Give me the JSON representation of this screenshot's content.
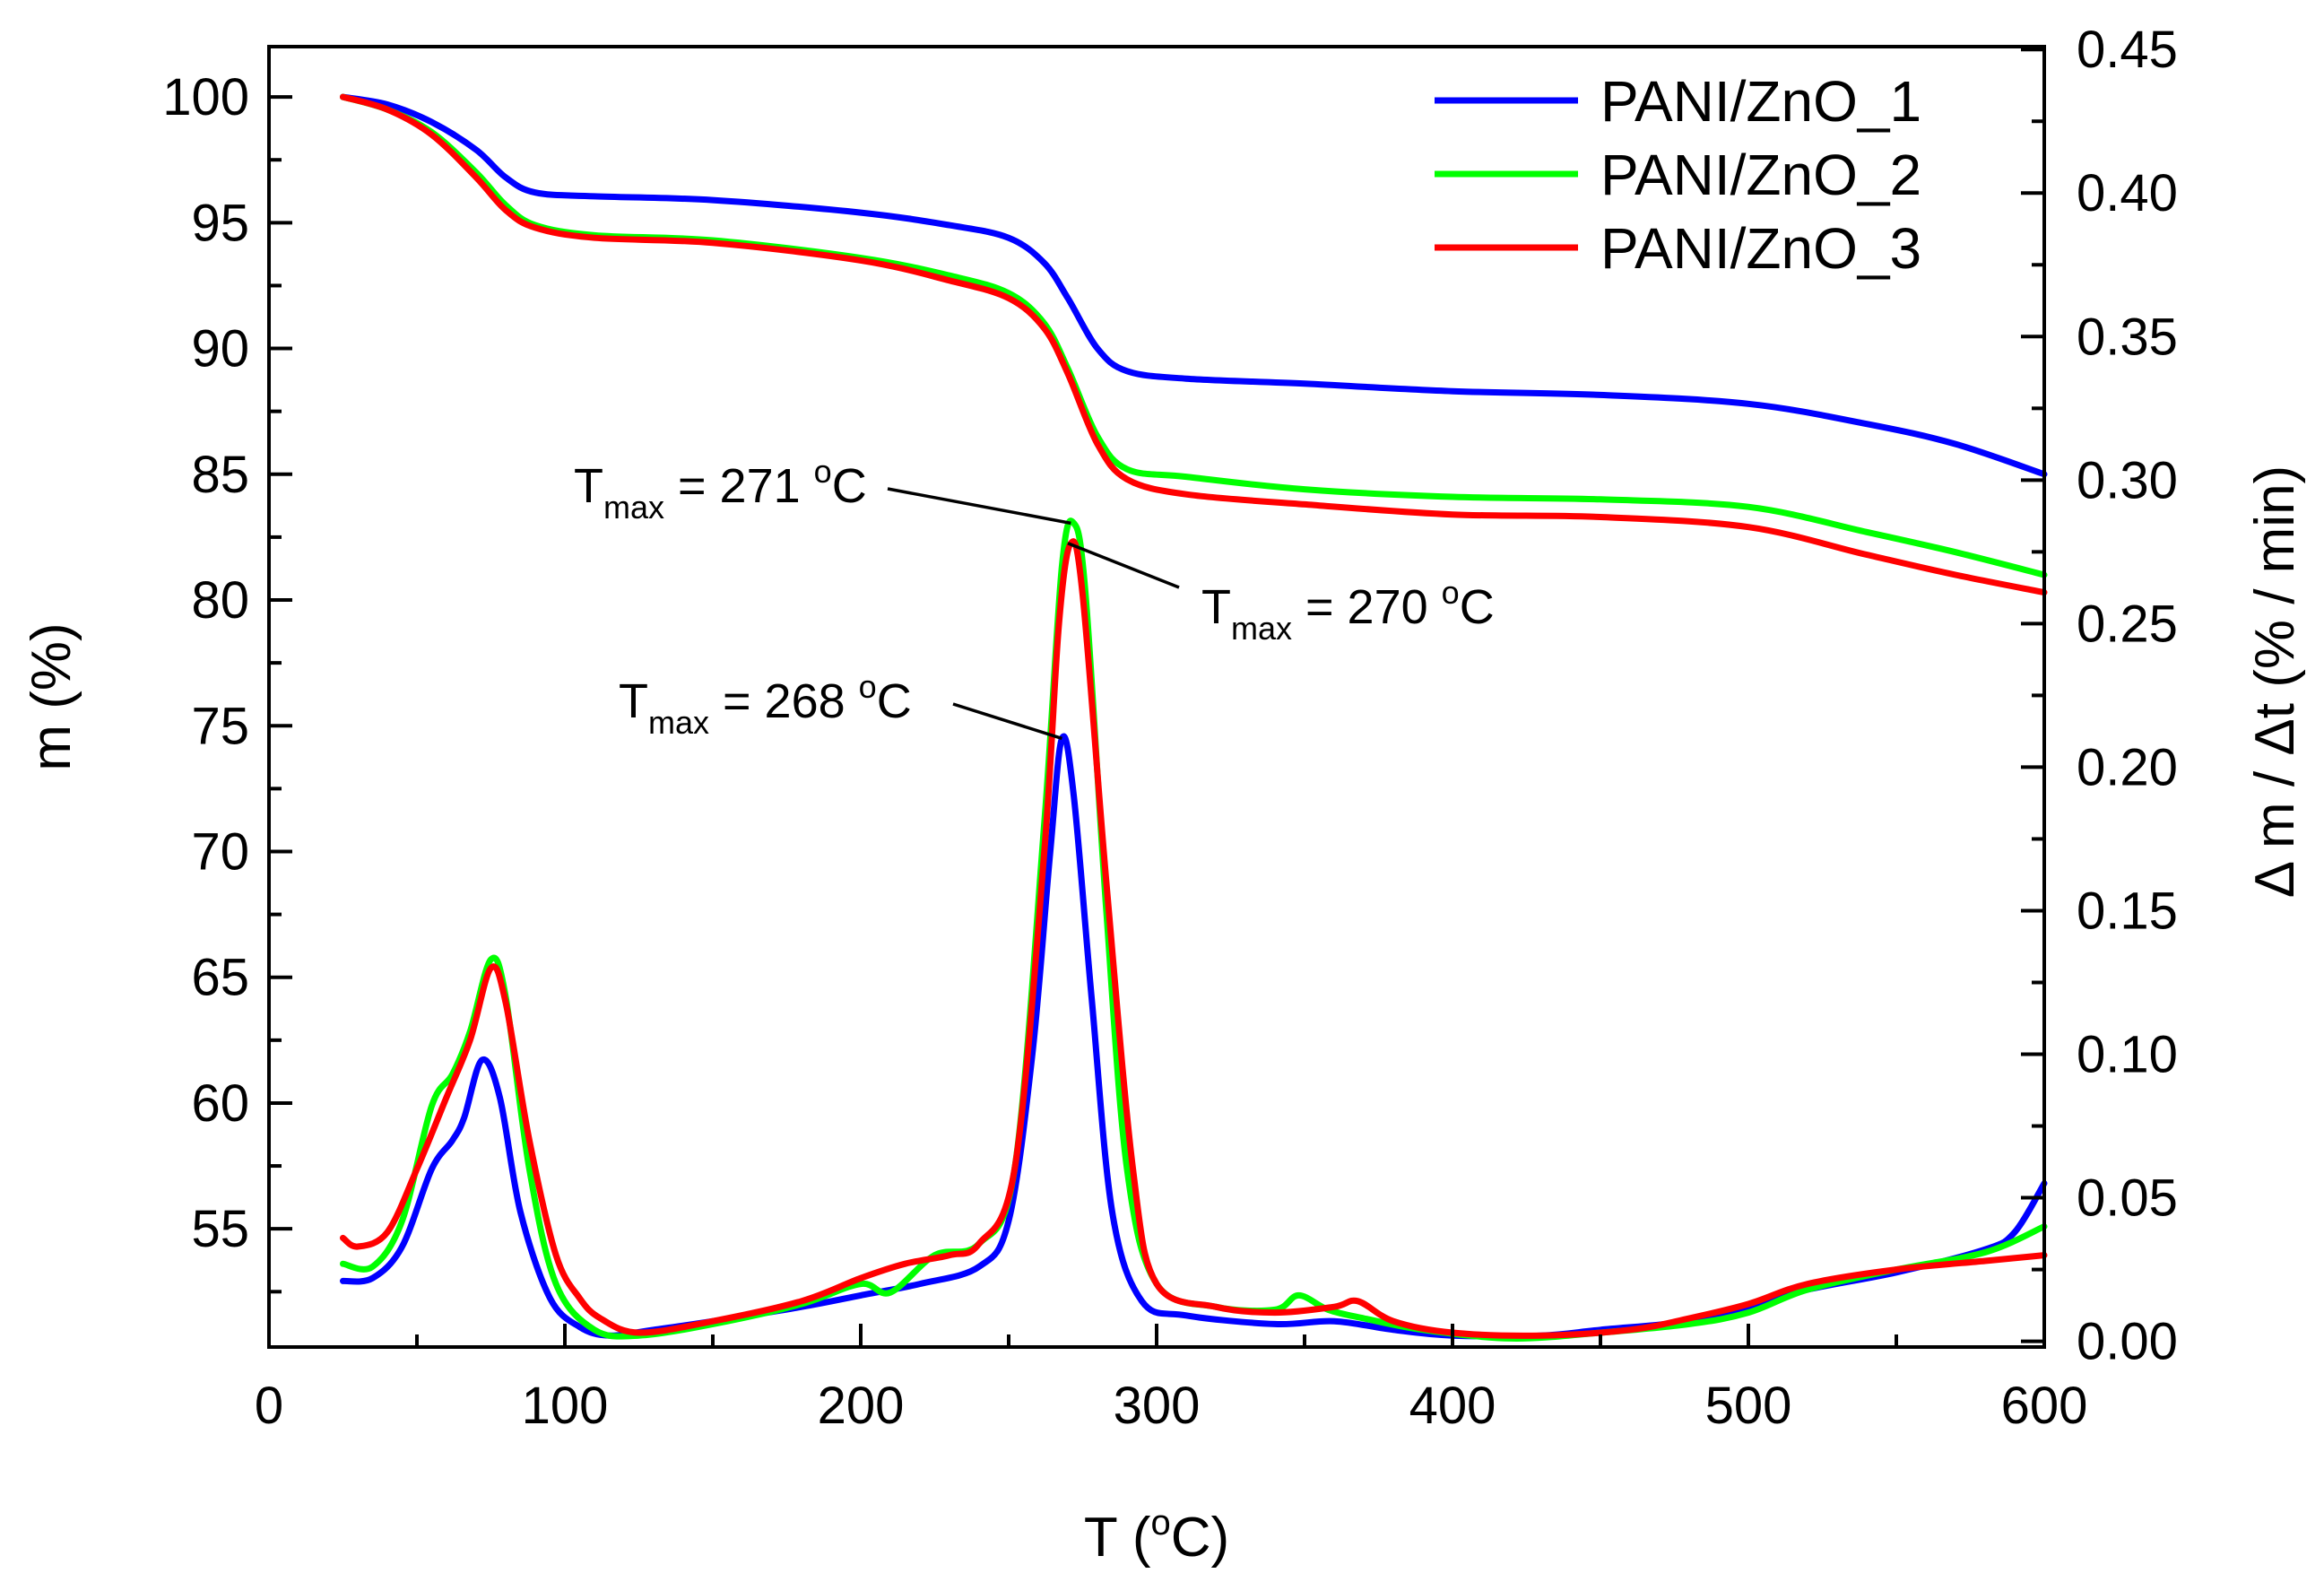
{
  "chart_data": {
    "type": "line",
    "title": "",
    "xlabel": "T (°C)",
    "xlabel_parts": {
      "prefix": "T (",
      "sup": "o",
      "suffix": "C)"
    },
    "ylabel_left": "m (%)",
    "ylabel_right": "Δ m / Δt (% / min)",
    "xlim": [
      0,
      600
    ],
    "ylim_left": [
      50.3,
      102
    ],
    "ylim_right": [
      -0.002,
      0.451
    ],
    "x_ticks": [
      "0",
      "100",
      "200",
      "300",
      "400",
      "500",
      "600"
    ],
    "y_left_ticks": [
      "55",
      "60",
      "65",
      "70",
      "75",
      "80",
      "85",
      "90",
      "95",
      "100"
    ],
    "y_right_ticks": [
      "0.00",
      "0.05",
      "0.10",
      "0.15",
      "0.20",
      "0.25",
      "0.30",
      "0.35",
      "0.40",
      "0.45"
    ],
    "grid": false,
    "legend_position": "top-right",
    "colors": {
      "PANI/ZnO_1": "#0000ff",
      "PANI/ZnO_2": "#00ff00",
      "PANI/ZnO_3": "#ff0000"
    },
    "series": [
      {
        "name": "PANI/ZnO_1",
        "axis": "left",
        "kind": "TG",
        "points": [
          [
            25,
            100
          ],
          [
            40,
            99.7
          ],
          [
            55,
            99
          ],
          [
            70,
            97.9
          ],
          [
            80,
            96.8
          ],
          [
            90,
            96.2
          ],
          [
            110,
            96.05
          ],
          [
            150,
            95.9
          ],
          [
            200,
            95.4
          ],
          [
            230,
            94.9
          ],
          [
            250,
            94.4
          ],
          [
            262,
            93.4
          ],
          [
            270,
            92
          ],
          [
            280,
            90
          ],
          [
            290,
            89.1
          ],
          [
            310,
            88.8
          ],
          [
            350,
            88.6
          ],
          [
            400,
            88.3
          ],
          [
            450,
            88.15
          ],
          [
            500,
            87.8
          ],
          [
            540,
            87
          ],
          [
            570,
            86.2
          ],
          [
            600,
            85
          ]
        ]
      },
      {
        "name": "PANI/ZnO_2",
        "axis": "left",
        "kind": "TG",
        "points": [
          [
            25,
            100
          ],
          [
            40,
            99.5
          ],
          [
            55,
            98.6
          ],
          [
            70,
            97
          ],
          [
            80,
            95.7
          ],
          [
            90,
            94.9
          ],
          [
            110,
            94.5
          ],
          [
            150,
            94.3
          ],
          [
            200,
            93.6
          ],
          [
            230,
            92.9
          ],
          [
            250,
            92.2
          ],
          [
            262,
            91
          ],
          [
            270,
            89.2
          ],
          [
            280,
            86.5
          ],
          [
            290,
            85.2
          ],
          [
            310,
            84.9
          ],
          [
            350,
            84.4
          ],
          [
            400,
            84.1
          ],
          [
            450,
            84
          ],
          [
            500,
            83.7
          ],
          [
            540,
            82.7
          ],
          [
            570,
            81.9
          ],
          [
            600,
            81
          ]
        ]
      },
      {
        "name": "PANI/ZnO_3",
        "axis": "left",
        "kind": "TG",
        "points": [
          [
            25,
            100
          ],
          [
            40,
            99.5
          ],
          [
            55,
            98.5
          ],
          [
            70,
            96.8
          ],
          [
            80,
            95.5
          ],
          [
            90,
            94.8
          ],
          [
            110,
            94.4
          ],
          [
            150,
            94.2
          ],
          [
            200,
            93.5
          ],
          [
            230,
            92.7
          ],
          [
            250,
            92
          ],
          [
            262,
            90.8
          ],
          [
            270,
            89
          ],
          [
            280,
            86.2
          ],
          [
            290,
            84.8
          ],
          [
            310,
            84.2
          ],
          [
            350,
            83.8
          ],
          [
            400,
            83.4
          ],
          [
            450,
            83.3
          ],
          [
            500,
            82.9
          ],
          [
            540,
            81.8
          ],
          [
            570,
            81
          ],
          [
            600,
            80.3
          ]
        ]
      },
      {
        "name": "PANI/ZnO_1",
        "axis": "right",
        "kind": "DTG",
        "points": [
          [
            25,
            0.021
          ],
          [
            35,
            0.022
          ],
          [
            45,
            0.033
          ],
          [
            55,
            0.06
          ],
          [
            62,
            0.07
          ],
          [
            66,
            0.078
          ],
          [
            72,
            0.098
          ],
          [
            78,
            0.085
          ],
          [
            85,
            0.045
          ],
          [
            95,
            0.015
          ],
          [
            105,
            0.005
          ],
          [
            115,
            0.002
          ],
          [
            130,
            0.004
          ],
          [
            150,
            0.007
          ],
          [
            180,
            0.012
          ],
          [
            200,
            0.016
          ],
          [
            220,
            0.02
          ],
          [
            240,
            0.026
          ],
          [
            250,
            0.042
          ],
          [
            258,
            0.1
          ],
          [
            264,
            0.17
          ],
          [
            268,
            0.21
          ],
          [
            272,
            0.19
          ],
          [
            278,
            0.12
          ],
          [
            285,
            0.045
          ],
          [
            295,
            0.014
          ],
          [
            310,
            0.009
          ],
          [
            340,
            0.006
          ],
          [
            360,
            0.007
          ],
          [
            380,
            0.004
          ],
          [
            400,
            0.002
          ],
          [
            430,
            0.002
          ],
          [
            450,
            0.004
          ],
          [
            480,
            0.007
          ],
          [
            500,
            0.012
          ],
          [
            520,
            0.018
          ],
          [
            550,
            0.024
          ],
          [
            580,
            0.032
          ],
          [
            590,
            0.038
          ],
          [
            600,
            0.055
          ]
        ]
      },
      {
        "name": "PANI/ZnO_2",
        "axis": "right",
        "kind": "DTG",
        "points": [
          [
            25,
            0.027
          ],
          [
            35,
            0.026
          ],
          [
            45,
            0.042
          ],
          [
            55,
            0.082
          ],
          [
            62,
            0.093
          ],
          [
            68,
            0.108
          ],
          [
            75,
            0.133
          ],
          [
            80,
            0.12
          ],
          [
            88,
            0.06
          ],
          [
            97,
            0.02
          ],
          [
            110,
            0.004
          ],
          [
            125,
            0.002
          ],
          [
            150,
            0.006
          ],
          [
            180,
            0.013
          ],
          [
            200,
            0.02
          ],
          [
            210,
            0.017
          ],
          [
            225,
            0.03
          ],
          [
            240,
            0.034
          ],
          [
            252,
            0.06
          ],
          [
            262,
            0.18
          ],
          [
            268,
            0.27
          ],
          [
            272,
            0.285
          ],
          [
            276,
            0.26
          ],
          [
            283,
            0.15
          ],
          [
            290,
            0.06
          ],
          [
            300,
            0.02
          ],
          [
            320,
            0.012
          ],
          [
            340,
            0.011
          ],
          [
            348,
            0.016
          ],
          [
            358,
            0.011
          ],
          [
            370,
            0.008
          ],
          [
            390,
            0.004
          ],
          [
            420,
            0.001
          ],
          [
            450,
            0.003
          ],
          [
            480,
            0.006
          ],
          [
            500,
            0.01
          ],
          [
            520,
            0.018
          ],
          [
            550,
            0.025
          ],
          [
            580,
            0.031
          ],
          [
            600,
            0.04
          ]
        ]
      },
      {
        "name": "PANI/ZnO_3",
        "axis": "right",
        "kind": "DTG",
        "points": [
          [
            25,
            0.036
          ],
          [
            30,
            0.033
          ],
          [
            40,
            0.038
          ],
          [
            50,
            0.06
          ],
          [
            60,
            0.085
          ],
          [
            68,
            0.105
          ],
          [
            75,
            0.13
          ],
          [
            80,
            0.118
          ],
          [
            88,
            0.07
          ],
          [
            97,
            0.03
          ],
          [
            105,
            0.015
          ],
          [
            112,
            0.008
          ],
          [
            125,
            0.003
          ],
          [
            150,
            0.007
          ],
          [
            180,
            0.014
          ],
          [
            200,
            0.022
          ],
          [
            215,
            0.027
          ],
          [
            230,
            0.03
          ],
          [
            240,
            0.034
          ],
          [
            252,
            0.06
          ],
          [
            262,
            0.17
          ],
          [
            267,
            0.25
          ],
          [
            271,
            0.278
          ],
          [
            275,
            0.26
          ],
          [
            283,
            0.16
          ],
          [
            292,
            0.06
          ],
          [
            300,
            0.02
          ],
          [
            320,
            0.012
          ],
          [
            340,
            0.01
          ],
          [
            360,
            0.012
          ],
          [
            368,
            0.014
          ],
          [
            380,
            0.007
          ],
          [
            400,
            0.003
          ],
          [
            430,
            0.002
          ],
          [
            460,
            0.004
          ],
          [
            480,
            0.008
          ],
          [
            500,
            0.013
          ],
          [
            520,
            0.02
          ],
          [
            550,
            0.025
          ],
          [
            580,
            0.028
          ],
          [
            600,
            0.03
          ]
        ]
      }
    ],
    "annotations": [
      {
        "text_main": "T",
        "text_sub": "max",
        "text_rest": " = 271 ",
        "text_sup": "o",
        "text_unit": "C",
        "points_to": [
          271,
          0.285
        ],
        "label_anchor": "upper-left"
      },
      {
        "text_main": "T",
        "text_sub": "max",
        "text_rest": " = 270 ",
        "text_sup": "o",
        "text_unit": "C",
        "points_to": [
          270,
          0.278
        ],
        "label_anchor": "right"
      },
      {
        "text_main": "T",
        "text_sub": "max",
        "text_rest": " = 268 ",
        "text_sup": "o",
        "text_unit": "C",
        "points_to": [
          268,
          0.21
        ],
        "label_anchor": "left"
      }
    ]
  }
}
